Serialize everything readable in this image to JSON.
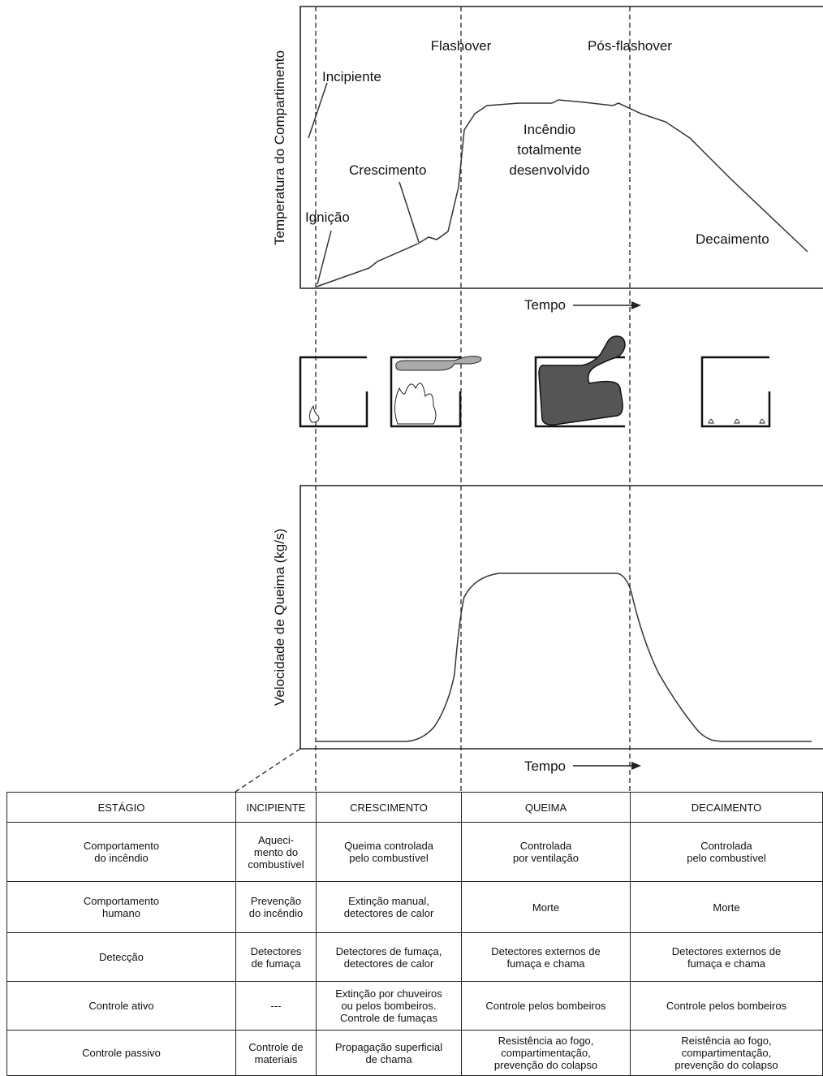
{
  "temperature_chart": {
    "y_label": "Temperatura do Compartimento",
    "x_label": "Tempo",
    "phases": [
      "Flashover",
      "Pós-flashover"
    ],
    "labels": {
      "incipient": "Incipiente",
      "growth": "Crescimento",
      "ignition": "Ignição",
      "developed": [
        "Incêndio",
        "totalmente",
        "desenvolvido"
      ],
      "decay": "Decaimento"
    }
  },
  "burning_rate_chart": {
    "y_label": "Velocidade de Queima (kg/s)",
    "x_label": "Tempo"
  },
  "table": {
    "header": [
      "ESTÁGIO",
      "INCIPIENTE",
      "CRESCIMENTO",
      "QUEIMA",
      "DECAIMENTO"
    ],
    "rows": [
      [
        [
          "Comportamento",
          "do incêndio"
        ],
        [
          "Aqueci-",
          "mento do",
          "combustível"
        ],
        [
          "Queima controlada",
          "pelo combustível"
        ],
        [
          "Controlada",
          "por ventilação"
        ],
        [
          "Controlada",
          "pelo combustível"
        ]
      ],
      [
        [
          "Comportamento",
          "humano"
        ],
        [
          "Prevenção",
          "do incêndio"
        ],
        [
          "Extinção manual,",
          "detectores de calor"
        ],
        [
          "Morte"
        ],
        [
          "Morte"
        ]
      ],
      [
        [
          "Detecção"
        ],
        [
          "Detectores",
          "de fumaça"
        ],
        [
          "Detectores de fumaça,",
          "detectores de calor"
        ],
        [
          "Detectores externos de",
          "fumaça e chama"
        ],
        [
          "Detectores externos de",
          "fumaça e chama"
        ]
      ],
      [
        [
          "Controle ativo"
        ],
        [
          "---"
        ],
        [
          "Extinção por chuveiros",
          "ou pelos bombeiros.",
          "Controle de fumaças"
        ],
        [
          "Controle pelos bombeiros"
        ],
        [
          "Controle pelos bombeiros"
        ]
      ],
      [
        [
          "Controle passivo"
        ],
        [
          "Controle de",
          "materiais"
        ],
        [
          "Propagação superficial",
          "de chama"
        ],
        [
          "Resistência ao fogo,",
          "compartimentação,",
          "prevenção do colapso"
        ],
        [
          "Reistência ao fogo,",
          "compartimentação,",
          "prevenção do colapso"
        ]
      ]
    ]
  }
}
